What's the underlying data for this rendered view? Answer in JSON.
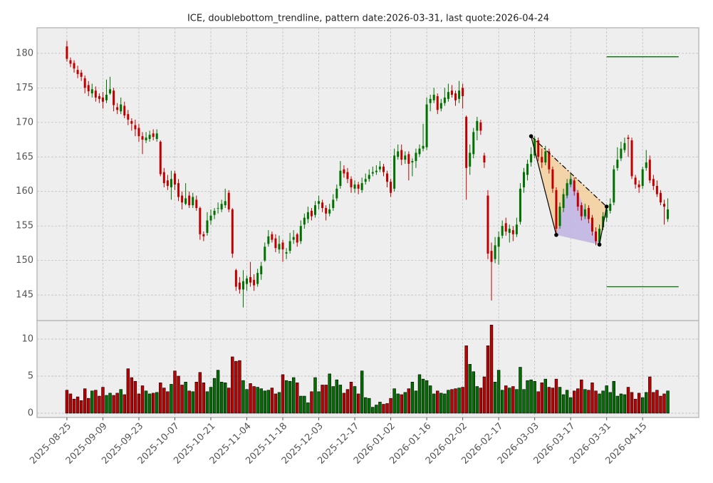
{
  "chart_data": {
    "type": "candlestick",
    "title": "ICE, doublebottom_trendline, pattern date:2026-03-31, last quote:2026-04-24",
    "grid": true,
    "up_color": "#007000",
    "down_color": "#c00000",
    "xlim": [
      -8.3,
      175.6
    ],
    "xticks": [
      {
        "value": 0,
        "label": "2025-08-25"
      },
      {
        "value": 10,
        "label": "2025-09-09"
      },
      {
        "value": 20,
        "label": "2025-09-23"
      },
      {
        "value": 30,
        "label": "2025-10-07"
      },
      {
        "value": 40,
        "label": "2025-10-21"
      },
      {
        "value": 50,
        "label": "2025-11-04"
      },
      {
        "value": 60,
        "label": "2025-11-18"
      },
      {
        "value": 70,
        "label": "2025-12-03"
      },
      {
        "value": 80,
        "label": "2025-12-17"
      },
      {
        "value": 90,
        "label": "2026-01-02"
      },
      {
        "value": 100,
        "label": "2026-01-16"
      },
      {
        "value": 110,
        "label": "2026-02-02"
      },
      {
        "value": 120,
        "label": "2026-02-17"
      },
      {
        "value": 130,
        "label": "2026-03-03"
      },
      {
        "value": 140,
        "label": "2026-03-17"
      },
      {
        "value": 150,
        "label": "2026-03-31"
      },
      {
        "value": 160,
        "label": "2026-04-15"
      }
    ],
    "ylim": [
      141.3,
      183.7
    ],
    "yticks": [
      145,
      150,
      155,
      160,
      165,
      170,
      175,
      180
    ],
    "volume_ylim": [
      -0.58,
      12.5
    ],
    "volume_yticks": [
      0,
      5,
      10
    ],
    "ohlc": [
      [
        181.0,
        181.8,
        178.8,
        179.2
      ],
      [
        179.0,
        179.4,
        178.0,
        178.5
      ],
      [
        178.6,
        179.0,
        177.2,
        177.8
      ],
      [
        177.6,
        178.2,
        176.4,
        177.0
      ],
      [
        177.2,
        177.6,
        176.0,
        176.6
      ],
      [
        176.4,
        176.8,
        174.2,
        175.0
      ],
      [
        175.4,
        176.0,
        173.8,
        174.5
      ],
      [
        174.2,
        175.6,
        173.6,
        174.8
      ],
      [
        174.6,
        175.2,
        173.0,
        173.6
      ],
      [
        173.8,
        174.2,
        172.8,
        173.4
      ],
      [
        173.6,
        174.4,
        172.0,
        173.0
      ],
      [
        173.2,
        176.2,
        172.8,
        174.0
      ],
      [
        174.2,
        176.6,
        174.0,
        174.8
      ],
      [
        174.6,
        175.0,
        171.6,
        172.5
      ],
      [
        172.2,
        172.8,
        171.2,
        171.8
      ],
      [
        171.6,
        173.6,
        171.2,
        172.6
      ],
      [
        172.4,
        173.0,
        170.6,
        171.0
      ],
      [
        171.2,
        171.8,
        169.6,
        170.4
      ],
      [
        170.2,
        170.6,
        168.8,
        169.8
      ],
      [
        169.6,
        170.4,
        168.0,
        169.0
      ],
      [
        169.2,
        169.8,
        167.2,
        168.0
      ],
      [
        168.0,
        168.6,
        165.4,
        167.5
      ],
      [
        167.4,
        168.6,
        167.0,
        167.8
      ],
      [
        167.6,
        168.8,
        167.2,
        168.2
      ],
      [
        168.4,
        169.0,
        167.4,
        167.9
      ],
      [
        167.6,
        169.0,
        167.2,
        168.4
      ],
      [
        167.2,
        167.4,
        162.2,
        162.5
      ],
      [
        162.8,
        163.4,
        160.6,
        161.2
      ],
      [
        161.6,
        162.4,
        160.2,
        160.8
      ],
      [
        160.6,
        163.0,
        158.8,
        161.8
      ],
      [
        162.6,
        163.0,
        160.2,
        161.0
      ],
      [
        161.2,
        161.8,
        158.6,
        159.2
      ],
      [
        159.4,
        160.0,
        157.4,
        158.4
      ],
      [
        158.2,
        161.2,
        158.0,
        159.0
      ],
      [
        159.4,
        160.0,
        157.6,
        158.0
      ],
      [
        158.0,
        159.8,
        157.6,
        159.2
      ],
      [
        158.8,
        159.4,
        157.2,
        157.6
      ],
      [
        157.6,
        157.8,
        153.0,
        153.8
      ],
      [
        153.8,
        154.2,
        152.8,
        153.5
      ],
      [
        154.0,
        157.0,
        153.6,
        155.8
      ],
      [
        155.8,
        157.4,
        155.2,
        156.5
      ],
      [
        156.6,
        157.6,
        156.0,
        157.2
      ],
      [
        157.6,
        158.4,
        156.8,
        157.6
      ],
      [
        157.4,
        158.8,
        157.0,
        158.2
      ],
      [
        158.0,
        160.4,
        157.6,
        158.6
      ],
      [
        159.8,
        160.2,
        157.0,
        157.4
      ],
      [
        157.4,
        157.6,
        150.4,
        151.0
      ],
      [
        148.6,
        148.8,
        145.6,
        146.2
      ],
      [
        146.8,
        147.6,
        145.2,
        145.8
      ],
      [
        145.8,
        148.6,
        143.2,
        147.0
      ],
      [
        146.6,
        147.8,
        145.6,
        147.4
      ],
      [
        147.6,
        149.8,
        146.2,
        146.8
      ],
      [
        147.2,
        148.0,
        145.6,
        146.4
      ],
      [
        146.6,
        148.8,
        146.2,
        148.2
      ],
      [
        148.0,
        149.8,
        147.2,
        149.2
      ],
      [
        150.0,
        152.6,
        149.8,
        152.0
      ],
      [
        152.4,
        154.4,
        152.0,
        153.5
      ],
      [
        153.8,
        154.2,
        152.6,
        153.0
      ],
      [
        153.2,
        153.8,
        151.2,
        151.8
      ],
      [
        151.6,
        153.6,
        151.0,
        152.4
      ],
      [
        152.6,
        153.0,
        149.8,
        151.6
      ],
      [
        151.0,
        151.8,
        150.2,
        151.2
      ],
      [
        151.4,
        154.0,
        151.0,
        152.8
      ],
      [
        153.0,
        154.4,
        152.4,
        153.4
      ],
      [
        153.8,
        154.0,
        152.0,
        152.6
      ],
      [
        152.8,
        155.8,
        152.4,
        155.0
      ],
      [
        155.2,
        156.8,
        154.6,
        156.2
      ],
      [
        156.0,
        157.8,
        155.4,
        157.0
      ],
      [
        157.2,
        157.6,
        155.8,
        156.4
      ],
      [
        156.6,
        158.6,
        156.2,
        158.0
      ],
      [
        158.2,
        159.4,
        157.4,
        158.6
      ],
      [
        158.4,
        158.8,
        157.0,
        157.6
      ],
      [
        157.6,
        158.0,
        155.8,
        156.8
      ],
      [
        156.8,
        158.2,
        156.4,
        157.4
      ],
      [
        157.6,
        159.6,
        157.2,
        158.8
      ],
      [
        159.0,
        161.0,
        158.6,
        160.4
      ],
      [
        160.8,
        164.4,
        160.4,
        163.0
      ],
      [
        163.2,
        163.8,
        162.0,
        162.6
      ],
      [
        162.8,
        163.4,
        161.2,
        161.8
      ],
      [
        161.8,
        162.2,
        159.8,
        160.6
      ],
      [
        160.4,
        161.6,
        159.8,
        161.0
      ],
      [
        161.0,
        161.4,
        159.6,
        160.4
      ],
      [
        160.2,
        162.0,
        159.8,
        161.2
      ],
      [
        161.4,
        162.6,
        161.0,
        161.8
      ],
      [
        161.8,
        163.2,
        161.4,
        162.4
      ],
      [
        162.6,
        163.6,
        162.2,
        162.8
      ],
      [
        162.8,
        163.8,
        162.4,
        163.0
      ],
      [
        163.2,
        164.4,
        162.8,
        163.6
      ],
      [
        163.6,
        164.0,
        162.2,
        162.8
      ],
      [
        162.6,
        163.0,
        160.6,
        161.4
      ],
      [
        161.4,
        161.8,
        159.2,
        159.8
      ],
      [
        160.4,
        166.2,
        160.0,
        165.2
      ],
      [
        165.0,
        166.8,
        164.6,
        165.8
      ],
      [
        166.0,
        166.8,
        163.8,
        164.6
      ],
      [
        164.6,
        165.8,
        164.0,
        165.2
      ],
      [
        165.4,
        165.8,
        161.6,
        164.0
      ],
      [
        164.2,
        164.8,
        162.2,
        164.4
      ],
      [
        164.4,
        166.2,
        163.4,
        165.6
      ],
      [
        165.4,
        166.8,
        165.0,
        166.2
      ],
      [
        166.2,
        169.8,
        165.8,
        166.6
      ],
      [
        166.4,
        173.6,
        166.0,
        172.6
      ],
      [
        172.8,
        174.0,
        171.6,
        173.4
      ],
      [
        173.2,
        175.0,
        172.8,
        174.0
      ],
      [
        173.8,
        174.2,
        171.2,
        171.8
      ],
      [
        172.0,
        173.4,
        171.6,
        172.8
      ],
      [
        172.8,
        175.0,
        172.4,
        173.6
      ],
      [
        173.4,
        175.6,
        173.0,
        174.4
      ],
      [
        174.6,
        175.4,
        173.6,
        174.0
      ],
      [
        174.2,
        174.6,
        172.4,
        173.2
      ],
      [
        173.4,
        176.0,
        172.8,
        174.6
      ],
      [
        175.0,
        175.6,
        172.0,
        173.8
      ],
      [
        170.8,
        171.0,
        158.8,
        163.4
      ],
      [
        163.6,
        166.8,
        162.4,
        165.6
      ],
      [
        165.4,
        169.2,
        164.8,
        168.6
      ],
      [
        168.8,
        170.8,
        167.4,
        170.2
      ],
      [
        170.0,
        170.4,
        168.2,
        168.8
      ],
      [
        165.2,
        165.6,
        163.4,
        164.2
      ],
      [
        159.4,
        160.2,
        150.2,
        151.0
      ],
      [
        151.4,
        152.6,
        144.2,
        149.8
      ],
      [
        150.2,
        153.4,
        149.6,
        152.2
      ],
      [
        152.0,
        154.2,
        149.4,
        153.4
      ],
      [
        153.6,
        155.8,
        153.2,
        155.0
      ],
      [
        155.4,
        156.2,
        153.6,
        154.2
      ],
      [
        154.0,
        155.2,
        152.6,
        154.6
      ],
      [
        154.4,
        155.0,
        152.8,
        153.8
      ],
      [
        153.8,
        156.2,
        153.4,
        155.2
      ],
      [
        155.6,
        161.2,
        155.2,
        160.4
      ],
      [
        160.6,
        163.4,
        159.8,
        162.8
      ],
      [
        162.4,
        164.6,
        161.6,
        164.0
      ],
      [
        164.2,
        166.4,
        163.6,
        165.4
      ],
      [
        165.2,
        168.0,
        164.8,
        167.6
      ],
      [
        167.4,
        167.8,
        164.4,
        165.0
      ],
      [
        165.0,
        166.2,
        163.4,
        164.2
      ],
      [
        164.2,
        166.6,
        163.8,
        165.8
      ],
      [
        165.8,
        166.2,
        162.6,
        163.2
      ],
      [
        163.2,
        163.6,
        159.8,
        160.4
      ],
      [
        160.2,
        160.6,
        153.8,
        154.6
      ],
      [
        155.0,
        158.4,
        154.6,
        157.8
      ],
      [
        157.6,
        160.4,
        157.0,
        159.6
      ],
      [
        159.4,
        161.8,
        159.0,
        161.2
      ],
      [
        161.0,
        162.6,
        160.6,
        161.8
      ],
      [
        161.6,
        162.0,
        159.4,
        160.0
      ],
      [
        159.8,
        160.2,
        157.2,
        157.8
      ],
      [
        158.0,
        158.4,
        155.8,
        156.4
      ],
      [
        156.4,
        158.2,
        156.0,
        157.4
      ],
      [
        157.6,
        158.0,
        155.4,
        156.0
      ],
      [
        156.2,
        156.6,
        153.6,
        154.2
      ],
      [
        154.2,
        154.8,
        152.2,
        152.8
      ],
      [
        152.6,
        155.2,
        152.2,
        154.6
      ],
      [
        154.8,
        157.0,
        154.4,
        156.4
      ],
      [
        156.2,
        158.0,
        155.6,
        157.4
      ],
      [
        157.2,
        159.0,
        156.8,
        158.2
      ],
      [
        158.4,
        163.8,
        158.0,
        163.2
      ],
      [
        163.4,
        166.4,
        163.0,
        164.6
      ],
      [
        164.8,
        167.2,
        164.4,
        166.2
      ],
      [
        166.0,
        167.8,
        165.6,
        167.0
      ],
      [
        167.8,
        168.2,
        165.0,
        167.6
      ],
      [
        167.4,
        167.8,
        161.8,
        162.2
      ],
      [
        162.0,
        162.4,
        160.4,
        161.0
      ],
      [
        161.0,
        161.6,
        159.8,
        160.6
      ],
      [
        160.8,
        163.6,
        160.4,
        163.2
      ],
      [
        163.4,
        166.0,
        163.0,
        164.2
      ],
      [
        164.6,
        165.2,
        161.2,
        161.6
      ],
      [
        161.8,
        162.4,
        160.2,
        160.8
      ],
      [
        160.8,
        161.6,
        159.2,
        159.6
      ],
      [
        159.8,
        160.2,
        158.0,
        158.4
      ],
      [
        158.2,
        158.8,
        155.2,
        157.8
      ],
      [
        156.0,
        159.0,
        155.6,
        157.4
      ]
    ],
    "volume": [
      3.1,
      2.6,
      1.9,
      2.2,
      1.7,
      3.3,
      2.0,
      3.0,
      3.1,
      2.3,
      3.5,
      2.4,
      2.7,
      2.4,
      2.7,
      3.2,
      2.5,
      6.0,
      4.8,
      4.3,
      2.6,
      3.7,
      3.0,
      2.6,
      2.7,
      2.8,
      4.1,
      3.4,
      2.9,
      3.9,
      5.7,
      5.0,
      3.8,
      4.2,
      3.0,
      2.9,
      4.2,
      5.5,
      4.1,
      2.9,
      3.5,
      4.7,
      5.8,
      4.2,
      4.1,
      3.4,
      7.6,
      7.0,
      7.1,
      4.4,
      3.2,
      4.0,
      3.6,
      3.5,
      3.3,
      3.0,
      3.1,
      3.4,
      2.6,
      2.8,
      5.2,
      4.4,
      4.3,
      4.8,
      4.1,
      2.3,
      2.3,
      1.4,
      2.9,
      4.8,
      2.9,
      3.8,
      3.8,
      5.3,
      3.6,
      4.5,
      3.8,
      2.7,
      3.2,
      4.2,
      3.6,
      2.6,
      5.7,
      2.1,
      2.0,
      0.8,
      1.1,
      1.5,
      1.2,
      1.3,
      2.0,
      3.3,
      2.6,
      2.5,
      2.8,
      3.3,
      4.2,
      3.0,
      5.2,
      4.6,
      4.4,
      3.7,
      2.6,
      3.0,
      2.7,
      2.6,
      3.1,
      3.2,
      3.3,
      3.4,
      3.5,
      9.1,
      6.6,
      5.6,
      3.6,
      3.4,
      4.9,
      9.1,
      11.9,
      4.2,
      5.8,
      3.1,
      3.7,
      3.4,
      3.6,
      3.2,
      6.2,
      3.2,
      4.4,
      4.5,
      4.3,
      2.9,
      4.1,
      4.6,
      3.5,
      3.4,
      4.6,
      3.5,
      2.5,
      3.1,
      2.1,
      3.0,
      3.3,
      4.5,
      3.2,
      3.1,
      4.1,
      3.0,
      2.6,
      3.0,
      3.7,
      2.8,
      4.3,
      2.3,
      2.6,
      2.5,
      3.5,
      2.8,
      1.9,
      2.7,
      2.1,
      2.8,
      4.9,
      2.8,
      3.1,
      2.3,
      2.6,
      3.0
    ],
    "pattern_points": [
      {
        "x": 129,
        "y": 168.0
      },
      {
        "x": 136,
        "y": 153.7
      },
      {
        "x": 148,
        "y": 152.3
      },
      {
        "x": 150,
        "y": 157.8
      }
    ],
    "pattern_apex": {
      "x": 140,
      "y": 162.4
    },
    "target_lines": [
      {
        "y": 179.5,
        "x": [
          150,
          170
        ]
      },
      {
        "y": 146.2,
        "x": [
          150,
          170
        ]
      }
    ]
  }
}
